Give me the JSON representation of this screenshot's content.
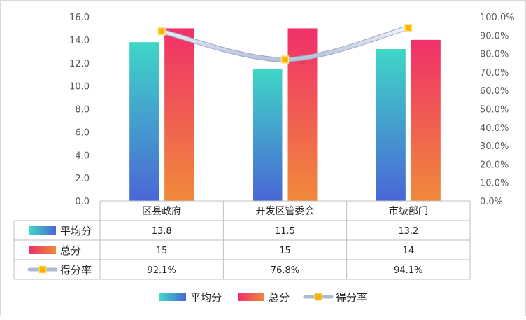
{
  "chart_data": {
    "type": "bar",
    "categories": [
      "区县政府",
      "开发区管委会",
      "市级部门"
    ],
    "series": [
      {
        "name": "平均分",
        "kind": "bar",
        "axis": "left",
        "values": [
          13.8,
          11.5,
          13.2
        ],
        "value_labels": [
          "13.8",
          "11.5",
          "13.2"
        ],
        "gradient": [
          "#3fd6c6",
          "#4a66d6"
        ]
      },
      {
        "name": "总分",
        "kind": "bar",
        "axis": "left",
        "values": [
          15,
          15,
          14
        ],
        "value_labels": [
          "15",
          "15",
          "14"
        ],
        "gradient": [
          "#f0306a",
          "#f08a3a"
        ]
      },
      {
        "name": "得分率",
        "kind": "line",
        "axis": "right",
        "values": [
          92.1,
          76.8,
          94.1
        ],
        "value_labels": [
          "92.1%",
          "76.8%",
          "94.1%"
        ],
        "line_color": "#c9d3e8",
        "marker_color": "#f7b500"
      }
    ],
    "y_left": {
      "min": 0,
      "max": 16,
      "step": 2,
      "ticks": [
        "0.0",
        "2.0",
        "4.0",
        "6.0",
        "8.0",
        "10.0",
        "12.0",
        "14.0",
        "16.0"
      ]
    },
    "y_right": {
      "min": 0,
      "max": 100,
      "step": 10,
      "ticks": [
        "0.0%",
        "10.0%",
        "20.0%",
        "30.0%",
        "40.0%",
        "50.0%",
        "60.0%",
        "70.0%",
        "80.0%",
        "90.0%",
        "100.0%"
      ]
    },
    "grid": false,
    "data_table": true,
    "legend": {
      "position": "bottom",
      "items": [
        "平均分",
        "总分",
        "得分率"
      ]
    }
  }
}
